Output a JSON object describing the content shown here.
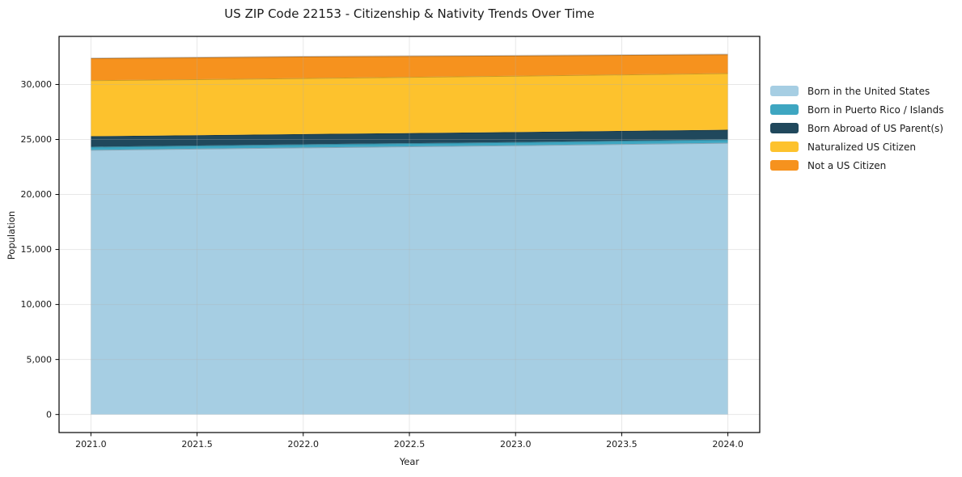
{
  "title": "US ZIP Code 22153 - Citizenship & Nativity Trends Over Time",
  "chart_data": {
    "type": "area",
    "stacked": true,
    "title": "US ZIP Code 22153 - Citizenship & Nativity Trends Over Time",
    "xlabel": "Year",
    "ylabel": "Population",
    "x": [
      2021,
      2022,
      2023,
      2024
    ],
    "series": [
      {
        "name": "Born in the United States",
        "color": "#a6cee3",
        "values": [
          24050,
          24270,
          24470,
          24700
        ]
      },
      {
        "name": "Born in Puerto Rico / Islands",
        "color": "#3ea6c1",
        "values": [
          290,
          290,
          295,
          300
        ]
      },
      {
        "name": "Born Abroad of US Parent(s)",
        "color": "#20485c",
        "values": [
          950,
          930,
          905,
          880
        ]
      },
      {
        "name": "Naturalized US Citizen",
        "color": "#fdc22d",
        "values": [
          5090,
          5090,
          5115,
          5150
        ]
      },
      {
        "name": "Not a US Citizen",
        "color": "#f6921e",
        "values": [
          2000,
          1950,
          1835,
          1700
        ]
      }
    ],
    "totals": [
      32380,
      32530,
      32620,
      32730
    ],
    "xlim": [
      2020.85,
      2024.15
    ],
    "ylim": [
      -1640,
      34370
    ],
    "xticks": [
      2021.0,
      2021.5,
      2022.0,
      2022.5,
      2023.0,
      2023.5,
      2024.0
    ],
    "xtick_labels": [
      "2021.0",
      "2021.5",
      "2022.0",
      "2022.5",
      "2023.0",
      "2023.5",
      "2024.0"
    ],
    "yticks": [
      0,
      5000,
      10000,
      15000,
      20000,
      25000,
      30000
    ],
    "ytick_labels": [
      "0",
      "5,000",
      "10,000",
      "15,000",
      "20,000",
      "25,000",
      "30,000"
    ],
    "grid": true,
    "grid_color": "#b0b0b0",
    "spine_color": "#000000",
    "legend_position": "right"
  }
}
